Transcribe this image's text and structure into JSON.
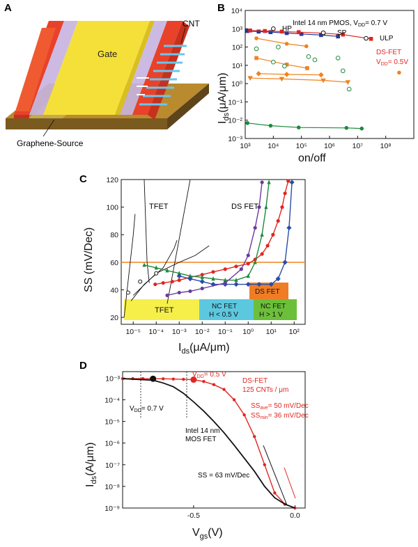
{
  "panels": {
    "A": {
      "letter": "A",
      "gate_label": "Gate",
      "cnt_label": "CNT",
      "source_label": "Graphene-Source"
    },
    "B": {
      "letter": "B",
      "xlabel": "on/off",
      "ylabel_main": "I",
      "ylabel_sub": "ds",
      "ylabel_unit": "(μA/μm)",
      "header_main": "Intel 14 nm PMOS, V",
      "header_sub": "DD",
      "header_tail": "= 0.7 V",
      "hp_label": "HP",
      "sp_label": "SP",
      "ulp_label": "ULP",
      "dsfet_label": "DS-FET",
      "vdd_main": "V",
      "vdd_sub": "DD",
      "vdd_tail": "= 0.5V",
      "xticks": [
        "10³",
        "10⁴",
        "10⁵",
        "10⁶",
        "10⁷",
        "10⁸"
      ],
      "yticks": [
        "10⁴",
        "10³",
        "10²",
        "10¹",
        "10⁰",
        "10⁻¹",
        "10⁻²",
        "10⁻³"
      ]
    },
    "C": {
      "letter": "C",
      "ylabel": "SS (mV/Dec)",
      "xlabel_main": "I",
      "xlabel_sub": "ds",
      "xlabel_unit": "(μA/μm)",
      "tfet_label": "TFET",
      "dsfet_label": "DS FET",
      "box_tfet": "TFET",
      "box_ncfet_low_1": "NC FET",
      "box_ncfet_low_2": "H < 0.5 V",
      "box_ncfet_high_1": "NC FET",
      "box_ncfet_high_2": "H > 1 V",
      "box_dsfet": "DS FET",
      "yticks": [
        "20",
        "40",
        "60",
        "80",
        "100",
        "120"
      ],
      "xticks": [
        "10⁻⁵",
        "10⁻⁴",
        "10⁻³",
        "10⁻²",
        "10⁻¹",
        "10⁰",
        "10¹",
        "10²"
      ]
    },
    "D": {
      "letter": "D",
      "ylabel_main": "I",
      "ylabel_sub": "ds",
      "ylabel_unit": "(A/μm)",
      "xlabel_main": "V",
      "xlabel_sub": "gs",
      "xlabel_unit": "(V)",
      "vdd07_main": "V",
      "vdd07_sub": "DD",
      "vdd07_tail": "= 0.7 V",
      "vdd05_main": "V",
      "vdd05_sub": "DD",
      "vdd05_tail": "= 0.5 V",
      "dsfet_line1": "DS-FET",
      "dsfet_line2": "125 CNTs / μm",
      "ssave_main": "SS",
      "ssave_sub": "ave",
      "ssave_tail": "= 50 mV/Dec",
      "ssmin_main": "SS",
      "ssmin_sub": "min",
      "ssmin_tail": "= 36 mV/Dec",
      "intel_line1": "Intel 14 nm",
      "intel_line2": "MOS FET",
      "ss63": "SS = 63 mV/Dec",
      "yticks": [
        "10⁻³",
        "10⁻⁴",
        "10⁻⁵",
        "10⁻⁶",
        "10⁻⁷",
        "10⁻⁸",
        "10⁻⁹"
      ],
      "xticks": [
        "-0.5",
        "0.0"
      ]
    }
  },
  "colors": {
    "red": "#e0261f",
    "navy": "#24379b",
    "orange": "#f0821e",
    "green": "#1e8a3c",
    "purple": "#6a3b9e",
    "blue": "#2a4ca8",
    "black": "#111111",
    "gate_yellow": "#f5e03a",
    "box_yellow": "#f6ef4a",
    "box_cyan": "#5cc8e0",
    "box_green": "#6cbf3a",
    "box_orange": "#ef7d25"
  },
  "chart_data": [
    {
      "panel": "B",
      "type": "scatter",
      "x_scale": "log",
      "y_scale": "log",
      "xlim": [
        1000,
        1000000000
      ],
      "ylim": [
        0.001,
        10000
      ],
      "series": [
        {
          "name": "Intel 14 nm PMOS, VDD = 0.7 V",
          "marker": "square",
          "color": "#24379b",
          "x": [
            1200,
            3000,
            8000,
            30000,
            100000,
            500000,
            2000000
          ],
          "y": [
            750,
            700,
            650,
            580,
            520,
            450,
            380
          ]
        },
        {
          "name": "DS-FET VDD = 0.5V",
          "marker": "square",
          "color": "#e0261f",
          "x": [
            1500,
            5000,
            20000,
            80000,
            600000,
            3000000,
            30000000
          ],
          "y": [
            800,
            750,
            700,
            650,
            570,
            480,
            280
          ]
        },
        {
          "marker": "circle-open",
          "color": "#111111",
          "x": [
            10000,
            600000,
            20000000
          ],
          "y": [
            1000,
            600,
            300
          ]
        },
        {
          "marker": "circle",
          "color": "#f0821e",
          "x": [
            2500,
            30000,
            150000
          ],
          "y": [
            300,
            150,
            110
          ]
        },
        {
          "marker": "square",
          "color": "#f0821e",
          "x": [
            2500,
            30000,
            160000
          ],
          "y": [
            25,
            11,
            7
          ]
        },
        {
          "marker": "diamond",
          "color": "#f0821e",
          "x": [
            3000,
            30000,
            500000
          ],
          "y": [
            3.5,
            3.2,
            3.0
          ]
        },
        {
          "marker": "triangle-down",
          "color": "#f0821e",
          "x": [
            1500,
            20000,
            600000,
            4500000
          ],
          "y": [
            2.0,
            1.8,
            1.5,
            1.2
          ]
        },
        {
          "marker": "circle",
          "color": "#f0821e",
          "x": [
            300000000
          ],
          "y": [
            4
          ]
        },
        {
          "marker": "circle-open",
          "color": "#1e8a3c",
          "x": [
            2500,
            10000,
            15000,
            25000,
            180000,
            300000,
            2000000,
            3000000,
            5000000
          ],
          "y": [
            80,
            15,
            100,
            9,
            30,
            20,
            25,
            5,
            0.5
          ]
        },
        {
          "marker": "circle",
          "color": "#1e8a3c",
          "x": [
            1200,
            8000,
            80000,
            4000000,
            14000000
          ],
          "y": [
            0.007,
            0.005,
            0.004,
            0.0038,
            0.0035
          ]
        }
      ]
    },
    {
      "panel": "C",
      "type": "line",
      "x_scale": "log",
      "xlim": [
        3e-06,
        300
      ],
      "ylim": [
        15,
        120
      ],
      "reference_line": {
        "y": 60,
        "color": "#f0821e"
      },
      "series": [
        {
          "color": "#e0261f",
          "marker": "circle",
          "x": [
            9e-05,
            0.0002,
            0.0005,
            0.001,
            0.003,
            0.01,
            0.03,
            0.1,
            0.3,
            1,
            2,
            4,
            7,
            12,
            20,
            30,
            40,
            55
          ],
          "y": [
            44,
            45,
            46,
            47,
            49,
            51,
            53,
            55,
            57,
            59,
            62,
            66,
            72,
            80,
            90,
            100,
            110,
            119
          ]
        },
        {
          "color": "#1e8a3c",
          "marker": "triangle",
          "x": [
            3e-05,
            0.0001,
            0.0003,
            0.001,
            0.003,
            0.01,
            0.03,
            0.1,
            0.3,
            1,
            2,
            4,
            6,
            8
          ],
          "y": [
            58,
            56,
            54,
            52,
            50,
            49,
            48,
            47,
            47,
            50,
            60,
            80,
            100,
            118
          ]
        },
        {
          "color": "#2a4ca8",
          "marker": "diamond",
          "x": [
            0.001,
            0.003,
            0.01,
            0.03,
            0.1,
            0.3,
            1,
            3,
            10,
            20,
            40,
            60,
            80
          ],
          "y": [
            50,
            48,
            46,
            44,
            44,
            44,
            44,
            44,
            44,
            48,
            60,
            85,
            118
          ]
        },
        {
          "color": "#6a3b9e",
          "marker": "circle",
          "x": [
            0.0003,
            0.001,
            0.003,
            0.01,
            0.1,
            0.5,
            1,
            2,
            3,
            4
          ],
          "y": [
            36,
            38,
            39,
            41,
            45,
            55,
            65,
            85,
            100,
            118
          ]
        }
      ]
    },
    {
      "panel": "D",
      "type": "line",
      "y_scale": "log",
      "xlim": [
        -0.85,
        0.05
      ],
      "ylim": [
        1e-09,
        0.002
      ],
      "series": [
        {
          "name": "DS-FET 125 CNTs / μm",
          "color": "#e0261f",
          "marker": "circle",
          "x": [
            -0.85,
            -0.8,
            -0.75,
            -0.7,
            -0.65,
            -0.6,
            -0.55,
            -0.5,
            -0.45,
            -0.4,
            -0.35,
            -0.3,
            -0.25,
            -0.2,
            -0.15,
            -0.1,
            -0.05,
            0.0
          ],
          "y": [
            0.00095,
            0.00095,
            0.00095,
            0.00094,
            0.00093,
            0.00091,
            0.00088,
            0.00085,
            0.0007,
            0.0005,
            0.0003,
            0.0001,
            2e-05,
            2e-06,
            1e-07,
            5e-09,
            1.5e-09,
            1e-09
          ]
        },
        {
          "name": "Intel 14 nm MOS FET",
          "color": "#111111",
          "x": [
            -0.85,
            -0.8,
            -0.75,
            -0.7,
            -0.65,
            -0.6,
            -0.55,
            -0.5,
            -0.45,
            -0.4,
            -0.35,
            -0.3,
            -0.25,
            -0.2,
            -0.15,
            -0.1,
            -0.05,
            0.0
          ],
          "y": [
            0.00095,
            0.0009,
            0.00085,
            0.0008,
            0.0006,
            0.0004,
            0.0002,
            8e-05,
            3e-05,
            1e-05,
            3e-06,
            8e-07,
            2e-07,
            5e-08,
            1e-08,
            3e-09,
            1.5e-09,
            1e-09
          ]
        }
      ]
    }
  ]
}
